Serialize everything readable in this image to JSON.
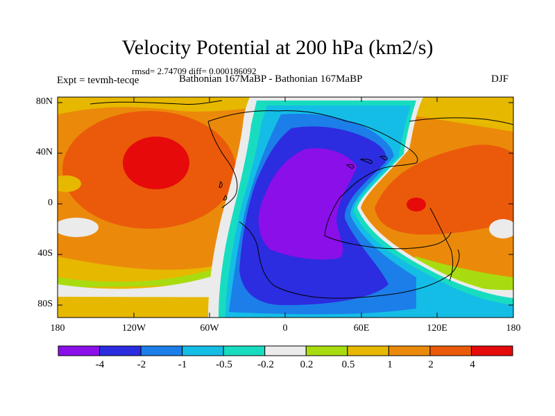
{
  "title": "Velocity Potential at 200 hPa (km2/s)",
  "stats": "rmsd= 2.74709 diff= 0.000186092",
  "left_label": "Expt = tevmh-tecqe",
  "center_label": "Bathonian 167MaBP - Bathonian 167MaBP",
  "right_label": "DJF",
  "axes": {
    "lat_ticks": [
      "80N",
      "40N",
      "0",
      "40S",
      "80S"
    ],
    "lon_ticks": [
      "180",
      "120W",
      "60W",
      "0",
      "60E",
      "120E",
      "180"
    ]
  },
  "colorbar": {
    "labels": [
      "-4",
      "-2",
      "-1",
      "-0.5",
      "-0.2",
      "0.2",
      "0.5",
      "1",
      "2",
      "4"
    ],
    "colors": [
      "#8a0fe8",
      "#2c2ce0",
      "#1c7ee8",
      "#14bde6",
      "#18dcc0",
      "#ebebeb",
      "#a8dc10",
      "#e6b800",
      "#eb8a0a",
      "#eb5a0a",
      "#e60a0a"
    ]
  },
  "fill_colors": {
    "c_m4": "#8a0fe8",
    "c_m2": "#2c2ce0",
    "c_m1": "#1c7ee8",
    "c_m05": "#14bde6",
    "c_m02": "#18dcc0",
    "c_0": "#ebebeb",
    "c_02": "#a8dc10",
    "c_05": "#e6b800",
    "c_1": "#eb8a0a",
    "c_2": "#eb5a0a",
    "c_4": "#e60a0a"
  }
}
